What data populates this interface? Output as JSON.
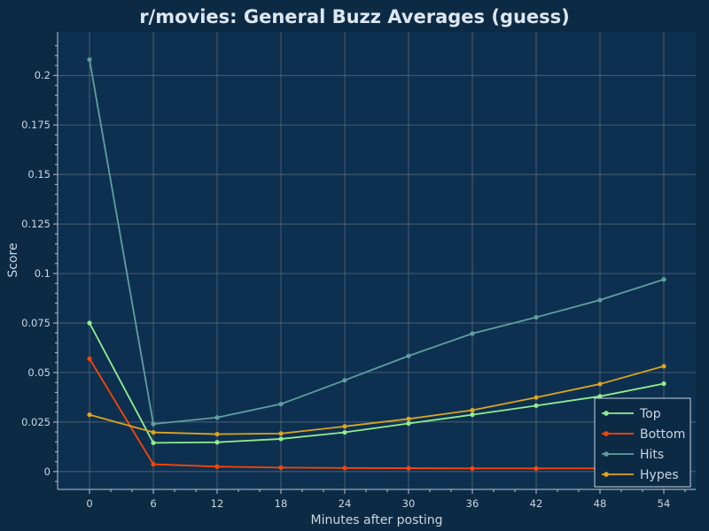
{
  "chart_data": {
    "type": "line",
    "title": "r/movies: General Buzz Averages (guess)",
    "xlabel": "Minutes after posting",
    "ylabel": "Score",
    "x": [
      0,
      6,
      12,
      18,
      24,
      30,
      36,
      42,
      48,
      54
    ],
    "xlim": [
      -3,
      57
    ],
    "ylim": [
      -0.009,
      0.222
    ],
    "x_ticks": [
      "0",
      "6",
      "12",
      "18",
      "24",
      "30",
      "36",
      "42",
      "48",
      "54"
    ],
    "y_ticks": [
      "0",
      "0.025",
      "0.05",
      "0.075",
      "0.1",
      "0.125",
      "0.15",
      "0.175",
      "0.2"
    ],
    "y_tick_values": [
      0,
      0.025,
      0.05,
      0.075,
      0.1,
      0.125,
      0.15,
      0.175,
      0.2
    ],
    "grid": true,
    "legend_position": "bottom-right",
    "background": "#0d2a45",
    "plot_background": "#0e3050",
    "series": [
      {
        "name": "Top",
        "color": "#90ee90",
        "values": [
          0.075,
          0.0145,
          0.0148,
          0.0165,
          0.0198,
          0.0243,
          0.0287,
          0.0333,
          0.038,
          0.0444
        ]
      },
      {
        "name": "Bottom",
        "color": "#ff4500",
        "values": [
          0.057,
          0.0037,
          0.0025,
          0.002,
          0.0018,
          0.0017,
          0.0016,
          0.0016,
          0.0016,
          0.0016
        ]
      },
      {
        "name": "Hits",
        "color": "#5f9ea0",
        "values": [
          0.208,
          0.024,
          0.0273,
          0.0341,
          0.0461,
          0.0584,
          0.0697,
          0.0779,
          0.0866,
          0.097
        ]
      },
      {
        "name": "Hypes",
        "color": "#daa520",
        "values": [
          0.0287,
          0.0198,
          0.0189,
          0.0192,
          0.0228,
          0.0266,
          0.031,
          0.0374,
          0.0442,
          0.0532
        ]
      }
    ]
  }
}
